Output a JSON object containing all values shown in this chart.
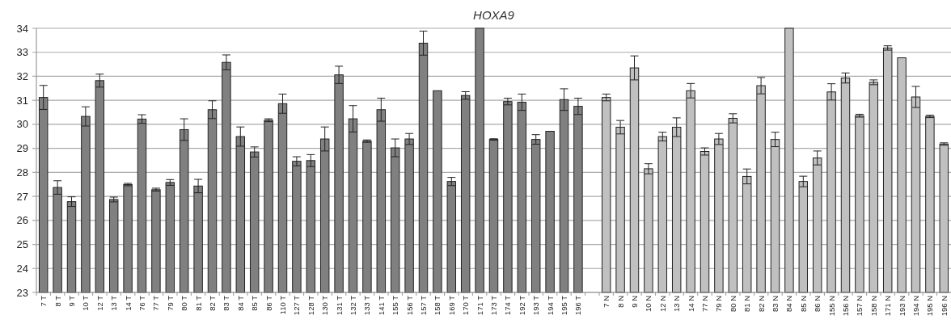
{
  "chart_data": {
    "type": "bar",
    "title": "HOXA9",
    "categories": [
      "7 T",
      "8 T",
      "9 T",
      "10 T",
      "12 T",
      "13 T",
      "14 T",
      "76 T",
      "77 T",
      "79 T",
      "80 T",
      "81 T",
      "82 T",
      "83 T",
      "84 T",
      "85 T",
      "86 T",
      "110 T",
      "127 T",
      "128 T",
      "130 T",
      "131 T",
      "132 T",
      "133 T",
      "141 T",
      "155 T",
      "156 T",
      "157 T",
      "158 T",
      "169 T",
      "170 T",
      "171 T",
      "173 T",
      "174 T",
      "192 T",
      "193 T",
      "194 T",
      "195 T",
      "196 T",
      null,
      "7 N",
      "8 N",
      "9 N",
      "10 N",
      "12 N",
      "13 N",
      "14 N",
      "77 N",
      "79 N",
      "80 N",
      "81 N",
      "82 N",
      "83 N",
      "84 N",
      "85 N",
      "86 N",
      "155 N",
      "156 N",
      "157 N",
      "158 N",
      "171 N",
      "193 N",
      "194 N",
      "195 N",
      "196 N"
    ],
    "series": [
      {
        "color": "#808080",
        "values": [
          31.12,
          27.37,
          26.78,
          30.33,
          31.82,
          26.87,
          27.49,
          30.22,
          27.28,
          27.58,
          29.78,
          27.43,
          30.61,
          32.58,
          29.49,
          28.85,
          30.17,
          30.86,
          28.46,
          28.49,
          29.39,
          32.06,
          30.23,
          29.3,
          30.61,
          29.02,
          29.39,
          33.38,
          31.4,
          27.62,
          31.2,
          34,
          29.37,
          30.95,
          30.92,
          29.37,
          29.71,
          31.03,
          30.75,
          null,
          null,
          null,
          null,
          null,
          null,
          null,
          null,
          null,
          null,
          null,
          null,
          null,
          null,
          null,
          null,
          null,
          null,
          null,
          null,
          null,
          null,
          null,
          null,
          null,
          null
        ],
        "errors": [
          0.5,
          0.28,
          0.2,
          0.4,
          0.27,
          0.1,
          0.05,
          0.18,
          0.06,
          0.12,
          0.45,
          0.28,
          0.37,
          0.31,
          0.4,
          0.21,
          0.06,
          0.4,
          0.19,
          0.25,
          0.5,
          0.36,
          0.55,
          0.05,
          0.48,
          0.37,
          0.23,
          0.5,
          null,
          0.17,
          0.16,
          null,
          0.03,
          0.14,
          0.34,
          0.2,
          null,
          0.45,
          0.34,
          null,
          null,
          null,
          null,
          null,
          null,
          null,
          null,
          null,
          null,
          null,
          null,
          null,
          null,
          null,
          null,
          null,
          null,
          null,
          null,
          null,
          null,
          null,
          null,
          null,
          null
        ]
      },
      {
        "color": "#c0c0c0",
        "values": [
          null,
          null,
          null,
          null,
          null,
          null,
          null,
          null,
          null,
          null,
          null,
          null,
          null,
          null,
          null,
          null,
          null,
          null,
          null,
          null,
          null,
          null,
          null,
          null,
          null,
          null,
          null,
          null,
          null,
          null,
          null,
          null,
          null,
          null,
          null,
          null,
          null,
          null,
          null,
          null,
          31.12,
          29.88,
          32.35,
          28.15,
          29.49,
          29.88,
          31.4,
          28.87,
          29.39,
          30.25,
          27.83,
          31.61,
          29.37,
          34,
          27.62,
          28.6,
          31.35,
          31.93,
          30.36,
          31.75,
          33.18,
          32.77,
          31.14,
          30.33,
          29.18
        ],
        "errors": [
          null,
          null,
          null,
          null,
          null,
          null,
          null,
          null,
          null,
          null,
          null,
          null,
          null,
          null,
          null,
          null,
          null,
          null,
          null,
          null,
          null,
          null,
          null,
          null,
          null,
          null,
          null,
          null,
          null,
          null,
          null,
          null,
          null,
          null,
          null,
          null,
          null,
          null,
          null,
          null,
          0.14,
          0.28,
          0.5,
          0.21,
          0.18,
          0.39,
          0.3,
          0.15,
          0.23,
          0.19,
          0.31,
          0.34,
          0.3,
          null,
          0.22,
          0.29,
          0.34,
          0.21,
          0.06,
          0.1,
          0.09,
          null,
          0.44,
          0.05,
          0.05
        ]
      }
    ],
    "ylim": [
      23,
      34
    ],
    "yticks": [
      23,
      24,
      25,
      26,
      27,
      28,
      29,
      30,
      31,
      32,
      33,
      34
    ],
    "grid": "y"
  }
}
